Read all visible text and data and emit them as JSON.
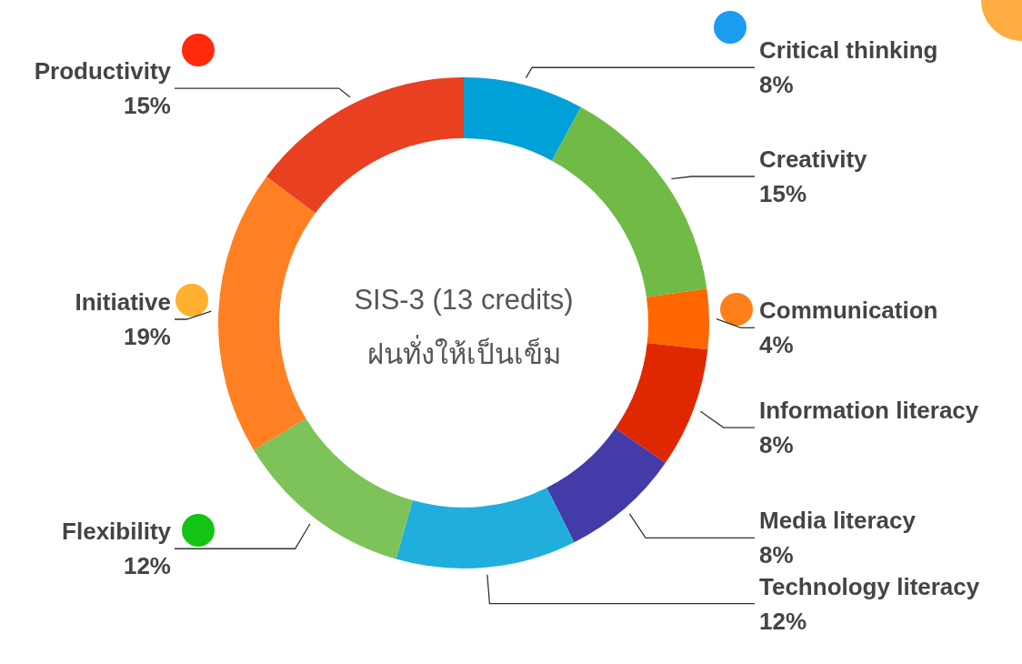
{
  "chart_data": {
    "type": "donut",
    "title": "SIS-3 (13 credits)",
    "subtitle": "ฝนทั่งให้เป็นเข็ม",
    "categories": [
      "Critical thinking",
      "Creativity",
      "Communication",
      "Information literacy",
      "Media literacy",
      "Technology literacy",
      "Flexibility",
      "Initiative",
      "Productivity"
    ],
    "values": [
      8,
      15,
      4,
      8,
      8,
      12,
      12,
      19,
      15
    ],
    "value_labels": [
      "8%",
      "15%",
      "4%",
      "8%",
      "8%",
      "12%",
      "12%",
      "19%",
      "15%"
    ],
    "colors": [
      "#00a0d8",
      "#70bb46",
      "#ff6600",
      "#e02800",
      "#433ba8",
      "#20aedd",
      "#7dc35a",
      "#ff8022",
      "#e84020"
    ]
  }
}
